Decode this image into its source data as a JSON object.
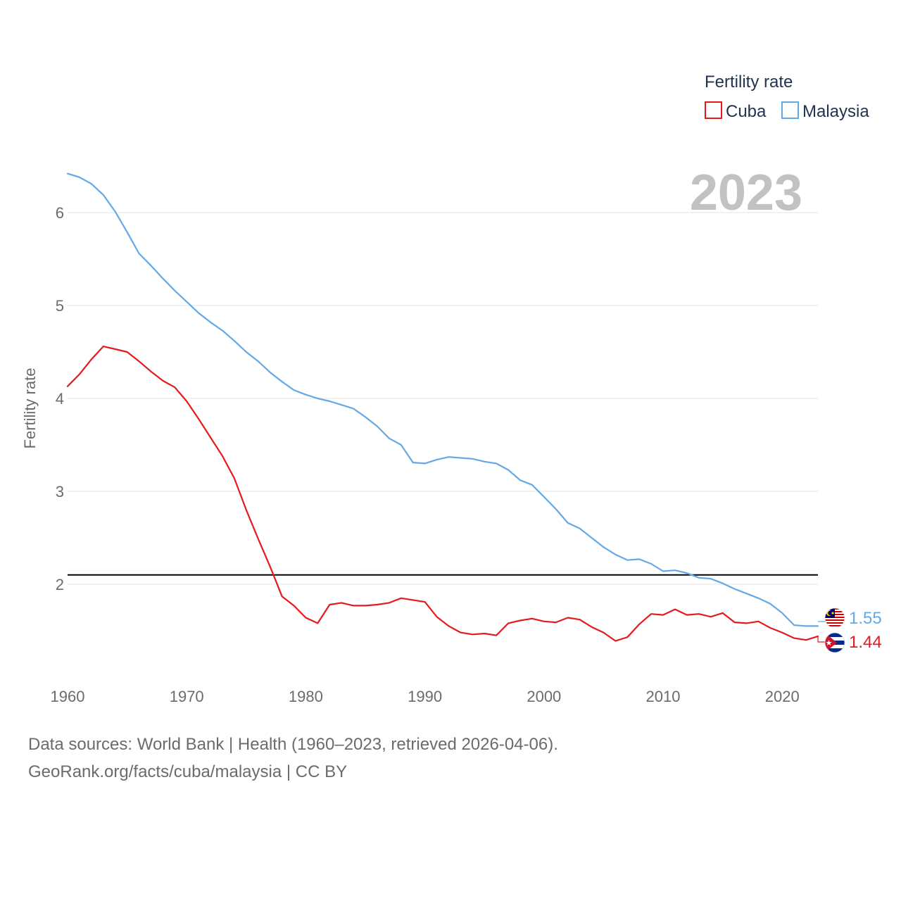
{
  "chart_data": {
    "type": "line",
    "ylabel": "Fertility rate",
    "year_label": "2023",
    "xlim": [
      1960,
      2023
    ],
    "ylim": [
      1.1,
      6.6
    ],
    "x_ticks": [
      1960,
      1970,
      1980,
      1990,
      2000,
      2010,
      2020
    ],
    "y_ticks": [
      2,
      3,
      4,
      5,
      6
    ],
    "legend": {
      "title": "Fertility rate",
      "position": "top-right"
    },
    "reference_line": {
      "y": 2.1,
      "color": "#000000"
    },
    "x": [
      1960,
      1961,
      1962,
      1963,
      1964,
      1965,
      1966,
      1967,
      1968,
      1969,
      1970,
      1971,
      1972,
      1973,
      1974,
      1975,
      1976,
      1977,
      1978,
      1979,
      1980,
      1981,
      1982,
      1983,
      1984,
      1985,
      1986,
      1987,
      1988,
      1989,
      1990,
      1991,
      1992,
      1993,
      1994,
      1995,
      1996,
      1997,
      1998,
      1999,
      2000,
      2001,
      2002,
      2003,
      2004,
      2005,
      2006,
      2007,
      2008,
      2009,
      2010,
      2011,
      2012,
      2013,
      2014,
      2015,
      2016,
      2017,
      2018,
      2019,
      2020,
      2021,
      2022,
      2023
    ],
    "series": [
      {
        "name": "Cuba",
        "color": "#e41a1c",
        "end_label": "1.44",
        "values": [
          4.13,
          4.26,
          4.42,
          4.56,
          4.53,
          4.5,
          4.4,
          4.29,
          4.19,
          4.12,
          3.97,
          3.78,
          3.58,
          3.38,
          3.14,
          2.8,
          2.49,
          2.19,
          1.87,
          1.77,
          1.64,
          1.58,
          1.78,
          1.8,
          1.77,
          1.77,
          1.78,
          1.8,
          1.85,
          1.83,
          1.81,
          1.65,
          1.55,
          1.48,
          1.46,
          1.47,
          1.45,
          1.58,
          1.61,
          1.63,
          1.6,
          1.59,
          1.64,
          1.62,
          1.54,
          1.48,
          1.39,
          1.43,
          1.57,
          1.68,
          1.67,
          1.73,
          1.67,
          1.68,
          1.65,
          1.69,
          1.59,
          1.58,
          1.6,
          1.53,
          1.48,
          1.42,
          1.4,
          1.44
        ]
      },
      {
        "name": "Malaysia",
        "color": "#63a9e8",
        "end_label": "1.55",
        "values": [
          6.42,
          6.38,
          6.31,
          6.19,
          6.01,
          5.79,
          5.56,
          5.43,
          5.29,
          5.16,
          5.04,
          4.92,
          4.82,
          4.73,
          4.62,
          4.5,
          4.4,
          4.28,
          4.18,
          4.09,
          4.04,
          4.0,
          3.97,
          3.93,
          3.89,
          3.8,
          3.7,
          3.57,
          3.5,
          3.31,
          3.3,
          3.34,
          3.37,
          3.36,
          3.35,
          3.32,
          3.3,
          3.23,
          3.12,
          3.07,
          2.94,
          2.81,
          2.66,
          2.6,
          2.5,
          2.4,
          2.32,
          2.26,
          2.27,
          2.22,
          2.14,
          2.15,
          2.12,
          2.07,
          2.06,
          2.01,
          1.95,
          1.9,
          1.85,
          1.79,
          1.69,
          1.56,
          1.55,
          1.55
        ]
      }
    ]
  },
  "footer": {
    "sources": "Data sources: World Bank | Health (1960–2023, retrieved 2026-04-06).",
    "attribution": "GeoRank.org/facts/cuba/malaysia | CC BY"
  }
}
